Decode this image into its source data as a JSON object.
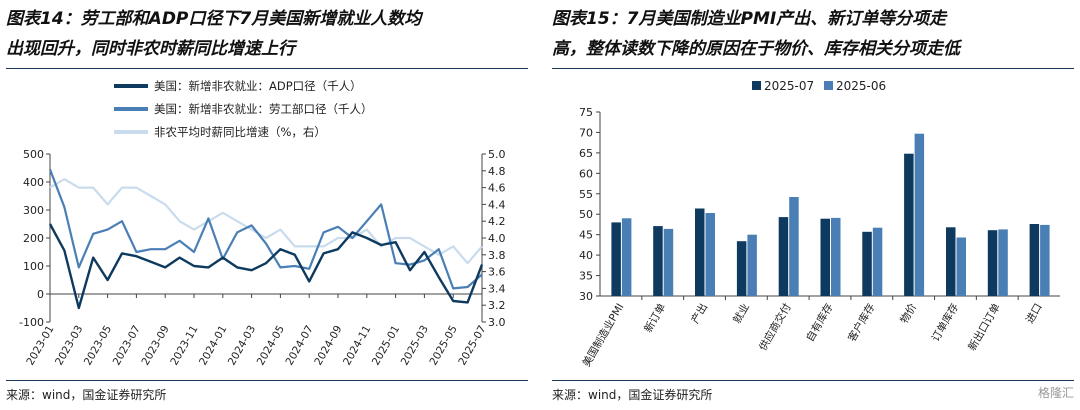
{
  "left": {
    "title_line1": "图表14：劳工部和ADP口径下7月美国新增就业人数均",
    "title_line2": "出现回升，同时非农时薪同比增速上行",
    "source": "来源：wind，国金证券研究所",
    "chart_data": {
      "type": "line",
      "x": [
        "2023-01",
        "2023-02",
        "2023-03",
        "2023-04",
        "2023-05",
        "2023-06",
        "2023-07",
        "2023-08",
        "2023-09",
        "2023-10",
        "2023-11",
        "2023-12",
        "2024-01",
        "2024-02",
        "2024-03",
        "2024-04",
        "2024-05",
        "2024-06",
        "2024-07",
        "2024-08",
        "2024-09",
        "2024-10",
        "2024-11",
        "2024-12",
        "2025-01",
        "2025-02",
        "2025-03",
        "2025-04",
        "2025-05",
        "2025-06",
        "2025-07"
      ],
      "xtick_labels": [
        "2023-01",
        "2023-03",
        "2023-05",
        "2023-07",
        "2023-09",
        "2023-11",
        "2024-01",
        "2024-03",
        "2024-05",
        "2024-07",
        "2024-09",
        "2024-11",
        "2025-01",
        "2025-03",
        "2025-05",
        "2025-07"
      ],
      "ylim_left": [
        -100,
        500
      ],
      "yticks_left": [
        "500",
        "400",
        "300",
        "200",
        "100",
        "0",
        "-100"
      ],
      "ylim_right": [
        3.0,
        5.0
      ],
      "yticks_right": [
        "5.0",
        "4.8",
        "4.6",
        "4.4",
        "4.2",
        "4.0",
        "3.8",
        "3.6",
        "3.4",
        "3.2",
        "3.0"
      ],
      "legend_position": "top-left",
      "series": [
        {
          "name": "美国：新增非农就业：ADP口径（千人）",
          "axis": "left",
          "color": "#0e3a5f",
          "width": 2.4,
          "values": [
            250,
            155,
            -50,
            130,
            50,
            145,
            135,
            115,
            95,
            130,
            100,
            95,
            130,
            95,
            85,
            110,
            160,
            140,
            45,
            145,
            160,
            220,
            200,
            175,
            185,
            85,
            150,
            60,
            -25,
            -30,
            105
          ]
        },
        {
          "name": "美国：新增非农就业：劳工部口径（千人）",
          "axis": "left",
          "color": "#4a7fb5",
          "width": 2.2,
          "values": [
            445,
            310,
            95,
            215,
            230,
            260,
            150,
            160,
            160,
            190,
            150,
            270,
            125,
            220,
            245,
            180,
            95,
            100,
            90,
            220,
            240,
            200,
            260,
            320,
            110,
            105,
            120,
            160,
            20,
            25,
            70
          ]
        },
        {
          "name": "非农平均时薪同比增速（%，右）",
          "axis": "right",
          "color": "#c9dcee",
          "width": 2.2,
          "values": [
            4.6,
            4.7,
            4.6,
            4.6,
            4.4,
            4.6,
            4.6,
            4.5,
            4.4,
            4.2,
            4.1,
            4.2,
            4.3,
            4.2,
            4.1,
            4.0,
            4.1,
            3.9,
            3.9,
            3.9,
            4.0,
            4.0,
            4.1,
            3.9,
            4.0,
            4.0,
            3.9,
            3.8,
            3.9,
            3.7,
            3.9
          ]
        }
      ]
    }
  },
  "right": {
    "title_line1": "图表15：7月美国制造业PMI产出、新订单等分项走",
    "title_line2": "高，整体读数下降的原因在于物价、库存相关分项走低",
    "source": "来源：wind，国金证券研究所",
    "watermark": "格隆汇",
    "chart_data": {
      "type": "bar",
      "categories": [
        "美国制造业PMI",
        "新订单",
        "产出",
        "就业",
        "供应商交付",
        "自有库存",
        "客户库存",
        "物价",
        "订单库存",
        "新出口订单",
        "进口"
      ],
      "ylim": [
        30,
        75
      ],
      "yticks": [
        "75",
        "70",
        "65",
        "60",
        "55",
        "50",
        "45",
        "40",
        "35",
        "30"
      ],
      "legend_position": "top-left",
      "series": [
        {
          "name": "2025-07",
          "color": "#0e3a5f",
          "values": [
            48.0,
            47.1,
            51.4,
            43.4,
            49.3,
            48.9,
            45.7,
            64.8,
            46.8,
            46.1,
            47.6
          ]
        },
        {
          "name": "2025-06",
          "color": "#4a7fb5",
          "values": [
            49.0,
            46.4,
            50.3,
            45.0,
            54.2,
            49.1,
            46.7,
            69.7,
            44.3,
            46.3,
            47.4
          ]
        }
      ]
    }
  }
}
